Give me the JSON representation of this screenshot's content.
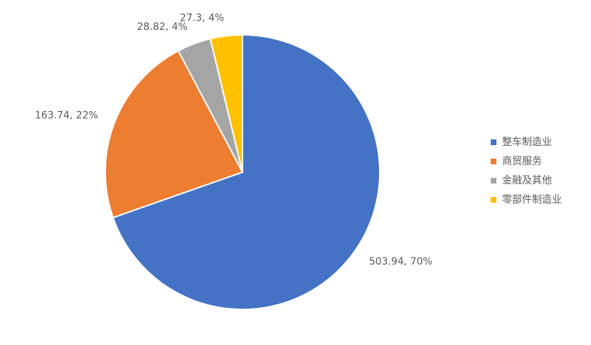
{
  "chart_data": {
    "type": "pie",
    "categories": [
      "整车制造业",
      "商贸服务",
      "金融及其他",
      "零部件制造业"
    ],
    "values": [
      503.94,
      163.74,
      28.82,
      27.3
    ],
    "value_labels": [
      "503.94, 70%",
      "163.74, 22%",
      "28.82, 4%",
      "27.3, 4%"
    ],
    "colors": [
      "#4472c4",
      "#ed7d31",
      "#a5a5a5",
      "#ffc000"
    ],
    "legend": "right"
  }
}
